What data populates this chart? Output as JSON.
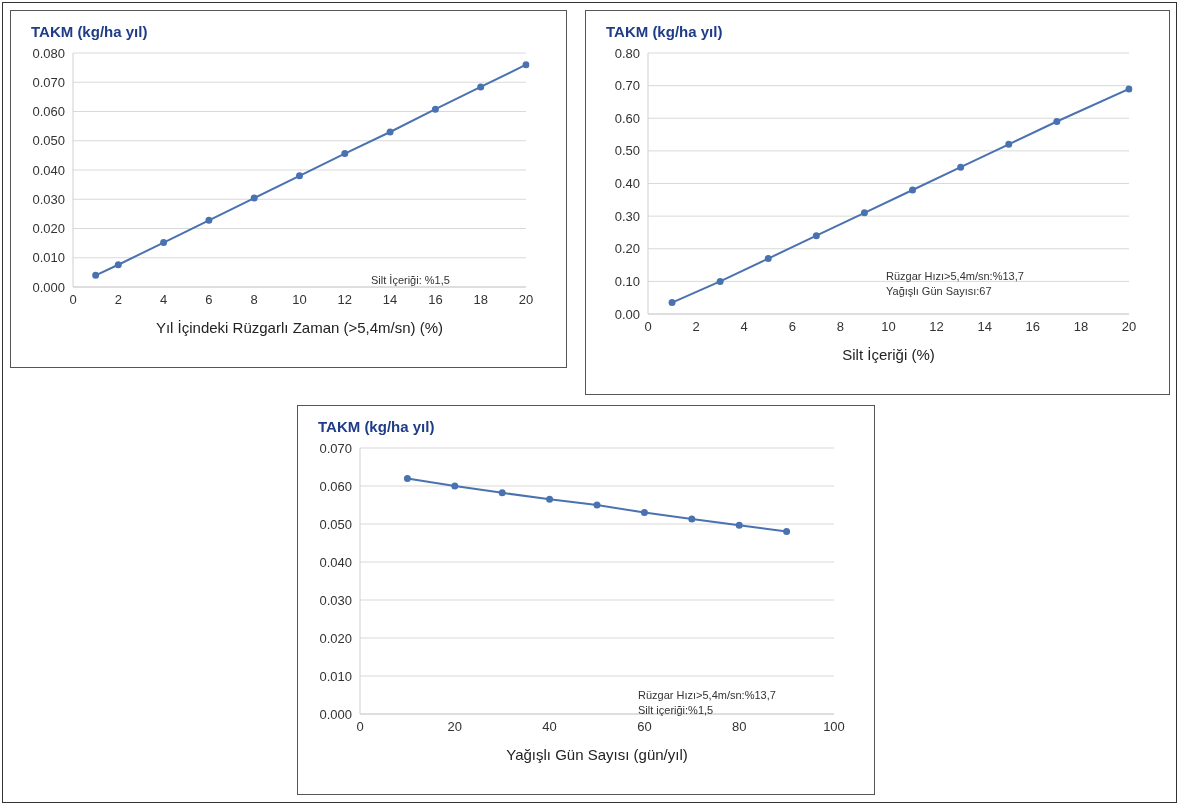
{
  "chart_data": [
    {
      "type": "line",
      "ylabel": "TAKM (kg/ha yıl)",
      "xlabel": "Yıl İçindeki Rüzgarlı Zaman (>5,4m/sn) (%)",
      "annotations": [
        "Silt İçeriği: %1,5"
      ],
      "marker": "circle",
      "grid": "y",
      "xlim": [
        0,
        20
      ],
      "xticks": [
        0,
        2,
        4,
        6,
        8,
        10,
        12,
        14,
        16,
        18,
        20
      ],
      "ylim": [
        0,
        0.08
      ],
      "yticks": [
        {
          "value": 0,
          "label": "0.000"
        },
        {
          "value": 0.01,
          "label": "0.010"
        },
        {
          "value": 0.02,
          "label": "0.020"
        },
        {
          "value": 0.03,
          "label": "0.030"
        },
        {
          "value": 0.04,
          "label": "0.040"
        },
        {
          "value": 0.05,
          "label": "0.050"
        },
        {
          "value": 0.06,
          "label": "0.060"
        },
        {
          "value": 0.07,
          "label": "0.070"
        },
        {
          "value": 0.08,
          "label": "0.080"
        }
      ],
      "x": [
        1,
        2,
        4,
        6,
        8,
        10,
        12,
        14,
        16,
        18,
        20
      ],
      "series": [
        {
          "color": "#4a72b0",
          "values": [
            0.004,
            0.0076,
            0.0152,
            0.0228,
            0.0304,
            0.038,
            0.0456,
            0.053,
            0.0608,
            0.0684,
            0.076
          ]
        }
      ]
    },
    {
      "type": "line",
      "ylabel": "TAKM (kg/ha yıl)",
      "xlabel": "Silt İçeriği (%)",
      "annotations": [
        "Rüzgar Hızı>5,4m/sn:%13,7",
        "Yağışlı Gün Sayısı:67"
      ],
      "marker": "circle",
      "grid": "y",
      "xlim": [
        0,
        20
      ],
      "xticks": [
        0,
        2,
        4,
        6,
        8,
        10,
        12,
        14,
        16,
        18,
        20
      ],
      "ylim": [
        0,
        0.8
      ],
      "yticks": [
        {
          "value": 0,
          "label": "0.00"
        },
        {
          "value": 0.1,
          "label": "0.10"
        },
        {
          "value": 0.2,
          "label": "0.20"
        },
        {
          "value": 0.3,
          "label": "0.30"
        },
        {
          "value": 0.4,
          "label": "0.40"
        },
        {
          "value": 0.5,
          "label": "0.50"
        },
        {
          "value": 0.6,
          "label": "0.60"
        },
        {
          "value": 0.7,
          "label": "0.70"
        },
        {
          "value": 0.8,
          "label": "0.80"
        }
      ],
      "x": [
        1,
        3,
        5,
        7,
        9,
        11,
        13,
        15,
        17,
        20
      ],
      "series": [
        {
          "color": "#4a72b0",
          "values": [
            0.035,
            0.1,
            0.17,
            0.24,
            0.31,
            0.38,
            0.45,
            0.52,
            0.59,
            0.69
          ]
        }
      ]
    },
    {
      "type": "line",
      "ylabel": "TAKM (kg/ha yıl)",
      "xlabel": "Yağışlı Gün Sayısı (gün/yıl)",
      "annotations": [
        "Rüzgar Hızı>5,4m/sn:%13,7",
        "Silt içeriği:%1,5"
      ],
      "marker": "circle",
      "grid": "y",
      "xlim": [
        0,
        100
      ],
      "xticks": [
        0,
        20,
        40,
        60,
        80,
        100
      ],
      "ylim": [
        0,
        0.07
      ],
      "yticks": [
        {
          "value": 0,
          "label": "0.000"
        },
        {
          "value": 0.01,
          "label": "0.010"
        },
        {
          "value": 0.02,
          "label": "0.020"
        },
        {
          "value": 0.03,
          "label": "0.030"
        },
        {
          "value": 0.04,
          "label": "0.040"
        },
        {
          "value": 0.05,
          "label": "0.050"
        },
        {
          "value": 0.06,
          "label": "0.060"
        },
        {
          "value": 0.07,
          "label": "0.070"
        }
      ],
      "x": [
        10,
        20,
        30,
        40,
        50,
        60,
        70,
        80,
        90
      ],
      "series": [
        {
          "color": "#4a72b0",
          "values": [
            0.062,
            0.06,
            0.0582,
            0.0565,
            0.055,
            0.053,
            0.0513,
            0.0497,
            0.048
          ]
        }
      ]
    }
  ]
}
